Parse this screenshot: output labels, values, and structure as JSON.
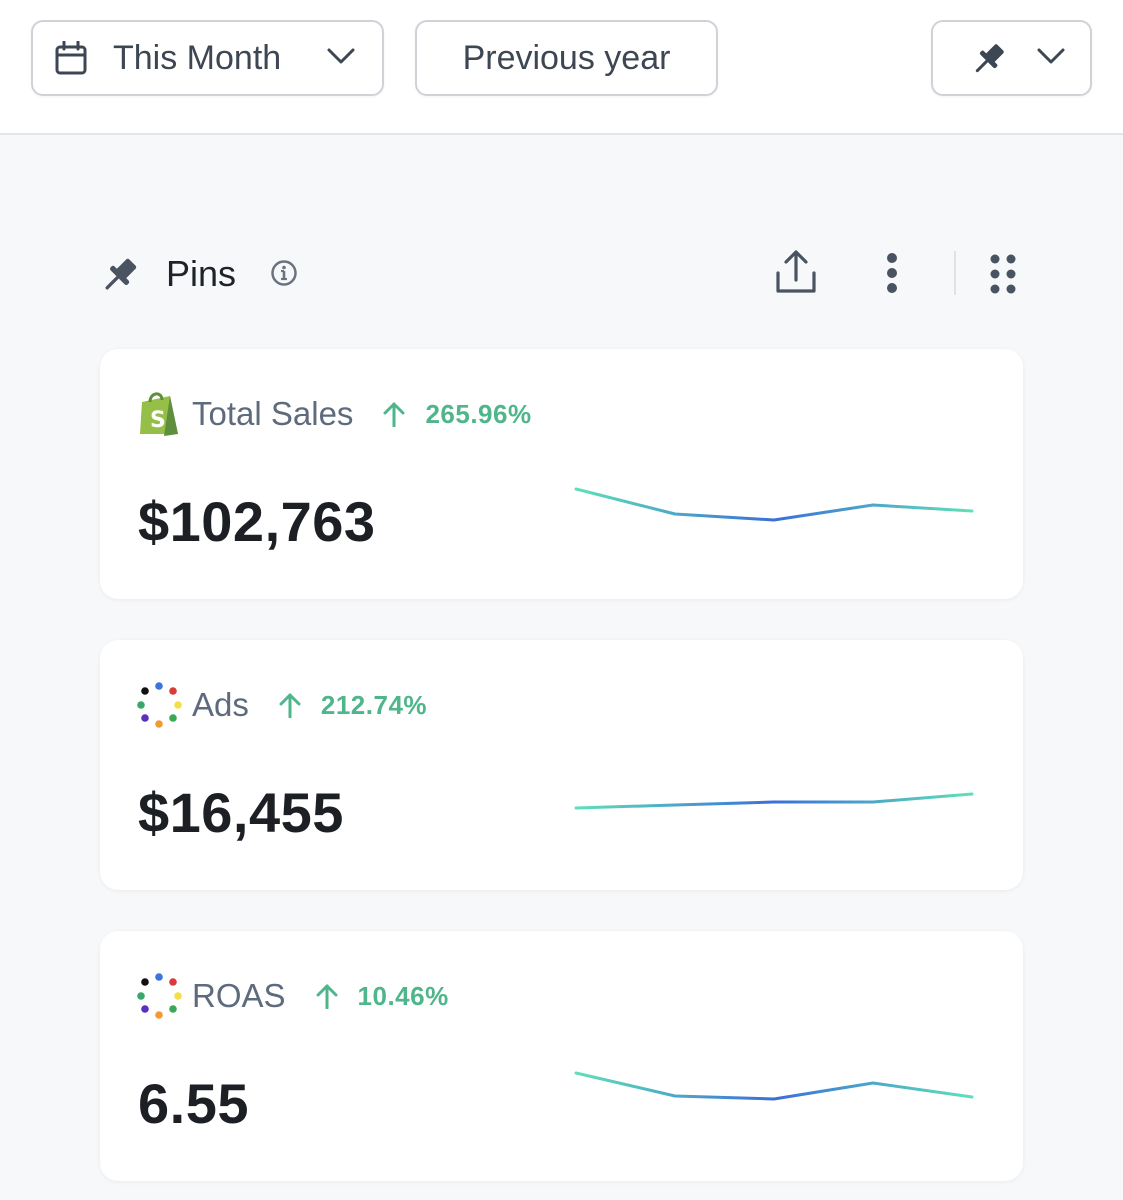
{
  "toolbar": {
    "date_range_label": "This Month",
    "compare_label": "Previous year"
  },
  "section": {
    "title": "Pins"
  },
  "colors": {
    "trend_up": "#4fb58a",
    "spark_start": "#5fe0b8",
    "spark_end": "#3a6fd8",
    "shopify_green": "#95bf47"
  },
  "cards": [
    {
      "label": "Total Sales",
      "icon": "shopify-icon",
      "change": "265.96%",
      "value": "$102,763",
      "sparkline": [
        60,
        35,
        29,
        44,
        38
      ]
    },
    {
      "label": "Ads",
      "icon": "ads-dots-icon",
      "change": "212.74%",
      "value": "$16,455",
      "sparkline": [
        32,
        35,
        38,
        38,
        46
      ]
    },
    {
      "label": "ROAS",
      "icon": "ads-dots-icon",
      "change": "10.46%",
      "value": "6.55",
      "sparkline": [
        58,
        35,
        32,
        48,
        34
      ]
    }
  ]
}
